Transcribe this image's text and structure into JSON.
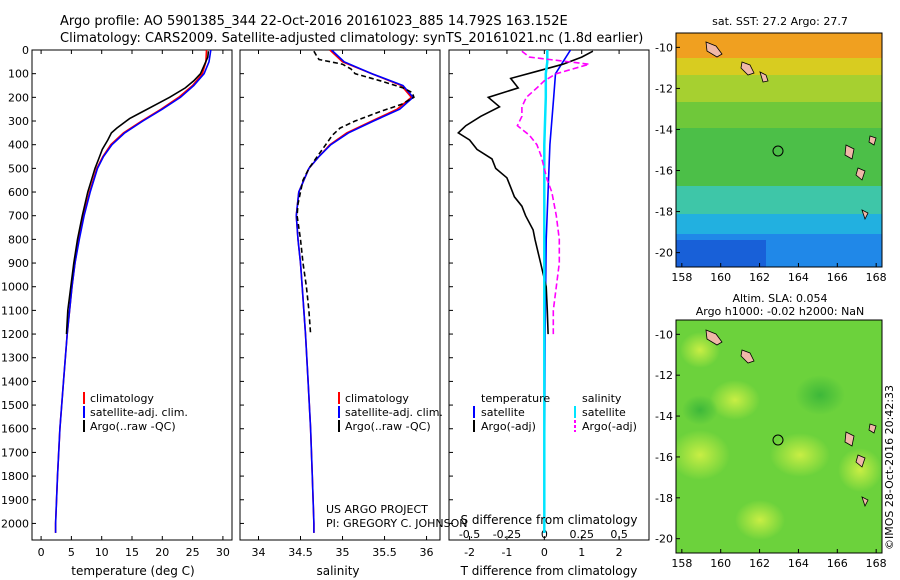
{
  "header": {
    "title_line1": "Argo profile: AO 5901385_344 22-Oct-2016 20161023_885 14.792S 163.152E",
    "title_line2": "Climatology: CARS2009. Satellite-adjusted climatology: synTS_20161021.nc (1.8d earlier)"
  },
  "colors": {
    "climatology": "#ff0000",
    "satellite": "#0000ff",
    "argo": "#000000",
    "salinity_satellite": "#00e5ff",
    "salinity_argo": "#ff00ff",
    "land": "#f0b8a8"
  },
  "depth_axis": {
    "ticks": [
      0,
      100,
      200,
      300,
      400,
      500,
      600,
      700,
      800,
      900,
      1000,
      1100,
      1200,
      1300,
      1400,
      1500,
      1600,
      1700,
      1800,
      1900,
      2000
    ],
    "range": [
      0,
      2070
    ],
    "inverted": true
  },
  "chart_data": [
    {
      "type": "line",
      "id": "temperature_profile",
      "xlabel": "temperature (deg C)",
      "xlim": [
        -1.5,
        31.5
      ],
      "xticks": [
        0,
        5,
        10,
        15,
        20,
        25,
        30
      ],
      "legend": [
        "climatology",
        "satellite-adj. clim.",
        "Argo(..raw -QC)"
      ],
      "series": [
        {
          "name": "climatology",
          "depth": [
            0,
            50,
            100,
            150,
            200,
            250,
            300,
            350,
            400,
            450,
            500,
            600,
            700,
            800,
            900,
            1000,
            1200,
            1400,
            1600,
            1800,
            2000,
            2040
          ],
          "values": [
            27.3,
            27.2,
            26.6,
            25.0,
            22.7,
            19.8,
            16.6,
            13.6,
            11.5,
            10.2,
            9.2,
            8.0,
            7.0,
            6.2,
            5.6,
            5.1,
            4.3,
            3.7,
            3.1,
            2.7,
            2.4,
            2.4
          ]
        },
        {
          "name": "satellite-adj. clim.",
          "depth": [
            0,
            50,
            100,
            150,
            200,
            250,
            300,
            350,
            400,
            450,
            500,
            600,
            700,
            800,
            900,
            1000,
            1200,
            1400,
            1600,
            1800,
            2000,
            2040
          ],
          "values": [
            28.0,
            27.7,
            26.9,
            25.2,
            23.0,
            20.0,
            16.8,
            13.8,
            11.7,
            10.3,
            9.3,
            8.1,
            7.1,
            6.3,
            5.6,
            5.1,
            4.3,
            3.7,
            3.1,
            2.7,
            2.4,
            2.4
          ]
        },
        {
          "name": "Argo(..raw -QC)",
          "depth": [
            5,
            30,
            60,
            100,
            130,
            160,
            200,
            230,
            260,
            290,
            330,
            350,
            380,
            420,
            460,
            500,
            550,
            600,
            700,
            800,
            900,
            1000,
            1100,
            1200
          ],
          "values": [
            27.6,
            27.5,
            27.0,
            26.3,
            25.2,
            23.8,
            21.2,
            19.0,
            16.8,
            14.6,
            12.5,
            11.6,
            11.0,
            10.1,
            9.5,
            8.9,
            8.3,
            7.7,
            6.8,
            6.0,
            5.4,
            4.9,
            4.4,
            4.2
          ]
        }
      ]
    },
    {
      "type": "line",
      "id": "salinity_profile",
      "xlabel": "salinity",
      "xlim": [
        33.78,
        36.16
      ],
      "xticks": [
        34,
        34.5,
        35,
        35.5,
        36
      ],
      "legend": [
        "climatology",
        "satellite-adj. clim.",
        "Argo(..raw -QC)"
      ],
      "annotations": [
        "US ARGO PROJECT",
        "PI: GREGORY C. JOHNSON"
      ],
      "series": [
        {
          "name": "climatology",
          "depth": [
            0,
            50,
            100,
            150,
            200,
            250,
            300,
            350,
            400,
            450,
            500,
            600,
            700,
            800,
            900,
            1000,
            1200,
            1400,
            1600,
            1800,
            2000,
            2040
          ],
          "values": [
            34.85,
            35.0,
            35.35,
            35.7,
            35.82,
            35.65,
            35.35,
            35.05,
            34.85,
            34.72,
            34.6,
            34.48,
            34.45,
            34.47,
            34.5,
            34.52,
            34.56,
            34.59,
            34.62,
            34.64,
            34.66,
            34.66
          ]
        },
        {
          "name": "satellite-adj. clim.",
          "depth": [
            0,
            50,
            100,
            150,
            200,
            250,
            300,
            350,
            400,
            450,
            500,
            600,
            700,
            800,
            900,
            1000,
            1200,
            1400,
            1600,
            1800,
            2000,
            2040
          ],
          "values": [
            34.87,
            35.02,
            35.35,
            35.72,
            35.84,
            35.68,
            35.37,
            35.07,
            34.86,
            34.72,
            34.6,
            34.48,
            34.45,
            34.47,
            34.5,
            34.52,
            34.56,
            34.59,
            34.62,
            34.64,
            34.66,
            34.66
          ]
        },
        {
          "name": "Argo(..raw -QC)",
          "depth": [
            5,
            30,
            40,
            60,
            80,
            100,
            130,
            160,
            180,
            200,
            230,
            260,
            300,
            330,
            360,
            400,
            450,
            500,
            550,
            600,
            650,
            700,
            800,
            900,
            1000,
            1100,
            1200
          ],
          "values": [
            34.66,
            34.7,
            34.72,
            35.0,
            35.1,
            35.15,
            35.45,
            35.72,
            35.83,
            35.85,
            35.7,
            35.45,
            35.15,
            34.97,
            34.88,
            34.8,
            34.7,
            34.6,
            34.53,
            34.5,
            34.47,
            34.46,
            34.5,
            34.53,
            34.57,
            34.6,
            34.62
          ]
        }
      ]
    },
    {
      "type": "line",
      "id": "difference_profile",
      "xlabel_bottom": "T difference from climatology",
      "xlabel_top": "S difference from climatology",
      "xlim_T": [
        -2.55,
        2.8
      ],
      "xticks_T": [
        -2,
        -1,
        0,
        1,
        2
      ],
      "xticks_S": [
        -0.5,
        -0.25,
        0,
        0.25,
        0.5
      ],
      "legend_temperature": [
        "temperature",
        "satellite",
        "Argo(-adj)"
      ],
      "legend_salinity": [
        "salinity",
        "satellite",
        "Argo(-adj)"
      ],
      "series": [
        {
          "name": "temperature satellite",
          "depth": [
            0,
            50,
            100,
            200,
            400,
            800,
            1200,
            2040
          ],
          "values": [
            0.7,
            0.5,
            0.3,
            0.25,
            0.15,
            0.05,
            0.02,
            0.0
          ]
        },
        {
          "name": "temperature Argo(-adj)",
          "depth": [
            5,
            30,
            60,
            90,
            120,
            160,
            200,
            240,
            280,
            320,
            350,
            380,
            420,
            460,
            500,
            540,
            580,
            620,
            660,
            700,
            760,
            800,
            900,
            1000,
            1100,
            1200
          ],
          "values": [
            1.3,
            1.0,
            0.5,
            -0.2,
            -0.9,
            -0.7,
            -1.5,
            -1.2,
            -1.7,
            -2.1,
            -2.3,
            -2.0,
            -1.8,
            -1.4,
            -1.3,
            -1.0,
            -0.9,
            -0.8,
            -0.6,
            -0.5,
            -0.3,
            -0.25,
            -0.1,
            0.05,
            0.08,
            0.1
          ]
        },
        {
          "name": "salinity satellite",
          "depth": [
            0,
            50,
            100,
            200,
            400,
            800,
            1200,
            2040
          ],
          "values": [
            0.02,
            0.02,
            0.01,
            0.01,
            0.0,
            0.0,
            0.0,
            0.0
          ]
        },
        {
          "name": "salinity Argo(-adj)",
          "depth": [
            5,
            30,
            60,
            100,
            130,
            160,
            200,
            240,
            280,
            320,
            360,
            400,
            450,
            500,
            550,
            600,
            700,
            800,
            900,
            1000,
            1100,
            1200
          ],
          "values": [
            -0.15,
            -0.1,
            0.3,
            0.08,
            0.0,
            -0.05,
            -0.12,
            -0.15,
            -0.15,
            -0.18,
            -0.1,
            -0.05,
            -0.02,
            0.0,
            0.02,
            0.05,
            0.08,
            0.1,
            0.1,
            0.08,
            0.06,
            0.06
          ]
        }
      ]
    },
    {
      "type": "heatmap",
      "id": "sst_map",
      "title": "sat. SST: 27.2  Argo: 27.7",
      "xticks": [
        158,
        160,
        162,
        164,
        166,
        168
      ],
      "yticks": [
        -10,
        -12,
        -14,
        -16,
        -18,
        -20
      ],
      "xlim": [
        157.7,
        168.3
      ],
      "ylim": [
        -20.7,
        -9.3
      ],
      "argo_location": {
        "lon": 163.152,
        "lat": -14.792
      }
    },
    {
      "type": "heatmap",
      "id": "sla_map",
      "title_line1": "Altim. SLA: 0.054",
      "title_line2": "Argo h1000: -0.02  h2000: NaN",
      "xticks": [
        158,
        160,
        162,
        164,
        166,
        168
      ],
      "yticks": [
        -10,
        -12,
        -14,
        -16,
        -18,
        -20
      ],
      "xlim": [
        157.7,
        168.3
      ],
      "ylim": [
        -20.7,
        -9.3
      ],
      "argo_location": {
        "lon": 163.152,
        "lat": -14.792
      }
    }
  ],
  "side_label": "©IMOS 28-Oct-2016 20:42:33"
}
